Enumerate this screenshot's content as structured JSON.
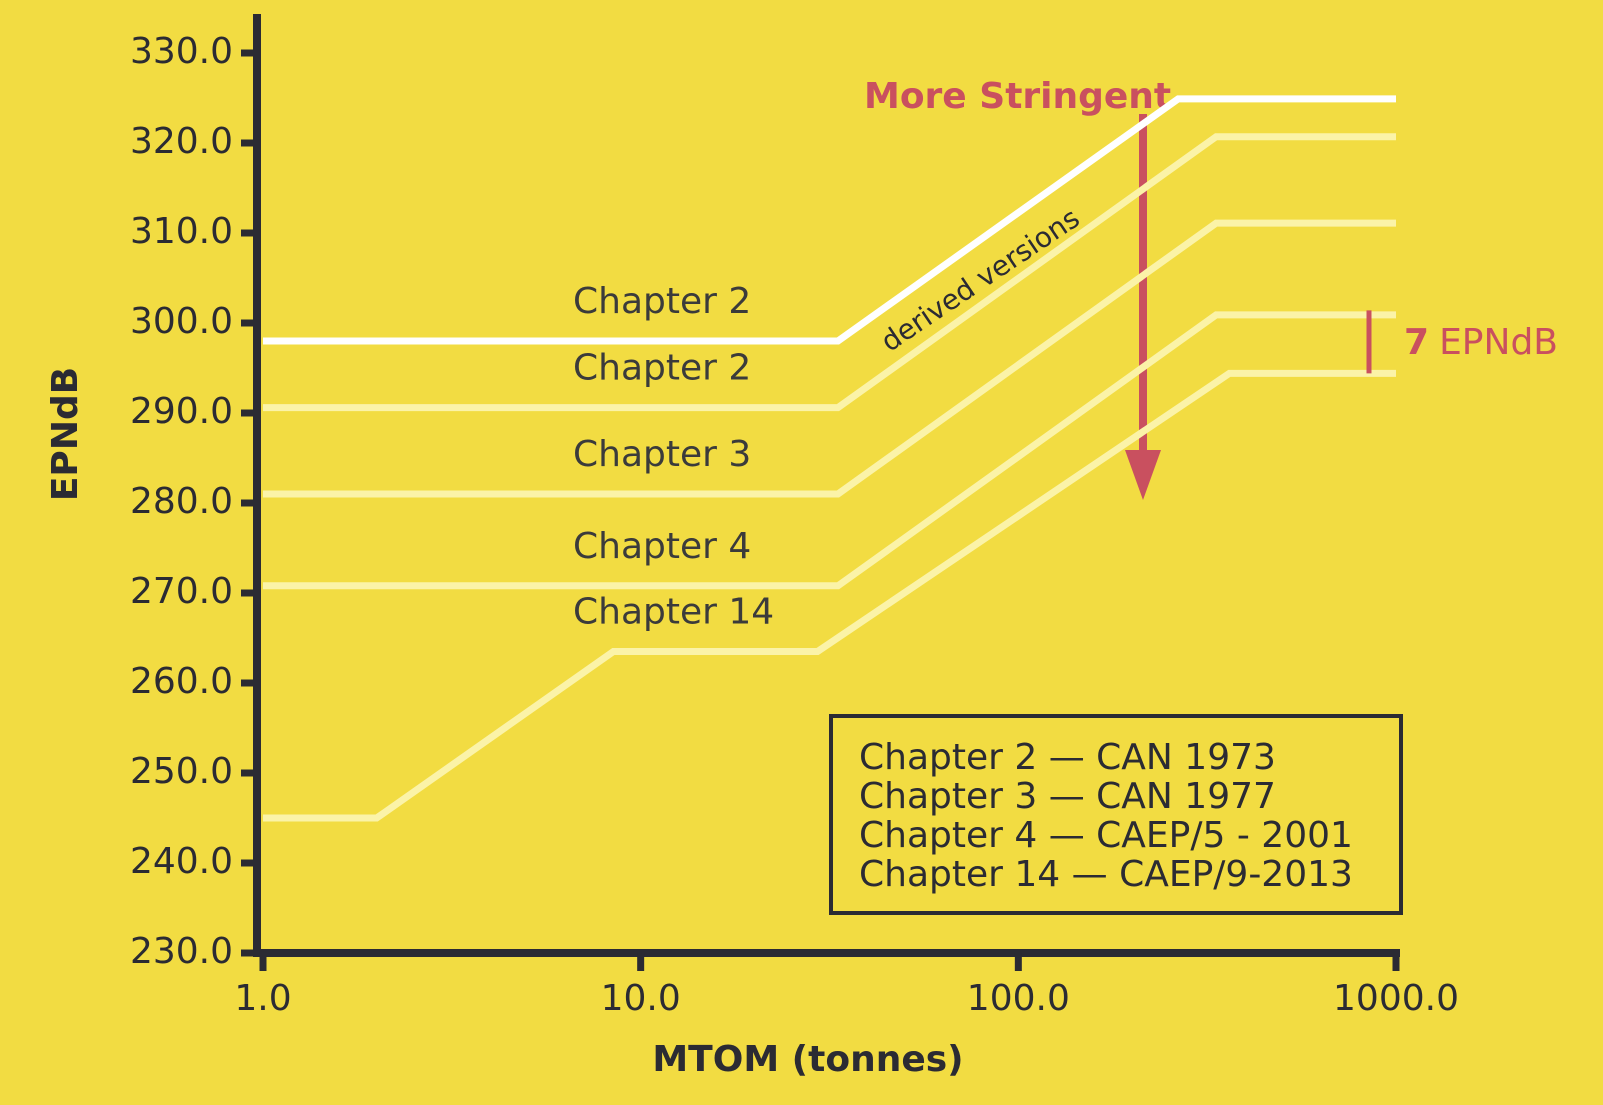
{
  "chart_data": {
    "type": "line",
    "x_label": "MTOM (tonnes)",
    "y_label": "EPNdB",
    "xscale": "log",
    "xlim": [
      1,
      1000
    ],
    "xticks": [
      {
        "value": 1,
        "label": "1.0"
      },
      {
        "value": 10,
        "label": "10.0"
      },
      {
        "value": 100,
        "label": "100.0"
      },
      {
        "value": 1000,
        "label": "1000.0"
      }
    ],
    "ylim": [
      230,
      330
    ],
    "yticks": [
      {
        "value": 230,
        "label": "230.0"
      },
      {
        "value": 240,
        "label": "240.0"
      },
      {
        "value": 250,
        "label": "250.0"
      },
      {
        "value": 260,
        "label": "260.0"
      },
      {
        "value": 270,
        "label": "270.0"
      },
      {
        "value": 280,
        "label": "280.0"
      },
      {
        "value": 290,
        "label": "290.0"
      },
      {
        "value": 300,
        "label": "300.0"
      },
      {
        "value": 310,
        "label": "310.0"
      },
      {
        "value": 320,
        "label": "320.0"
      },
      {
        "value": 330,
        "label": "330.0"
      }
    ],
    "series": [
      {
        "name": "Chapter 2",
        "color": "#ffffff",
        "x": [
          1,
          33.3,
          265,
          1000
        ],
        "values": [
          298,
          298,
          324.9,
          324.9
        ]
      },
      {
        "name": "Chapter 2",
        "color": "#fbf3a8",
        "x": [
          1,
          33.3,
          334,
          1000
        ],
        "values": [
          290.6,
          290.6,
          320.7,
          320.7
        ]
      },
      {
        "name": "Chapter 3",
        "color": "#fbf3a8",
        "x": [
          1,
          33.3,
          334,
          1000
        ],
        "values": [
          281,
          281,
          311.1,
          311.1
        ]
      },
      {
        "name": "Chapter 4",
        "color": "#fbf3a8",
        "x": [
          1,
          33.3,
          334,
          1000
        ],
        "values": [
          270.8,
          270.8,
          300.9,
          300.9
        ]
      },
      {
        "name": "Chapter 14",
        "color": "#fbf3a8",
        "x": [
          1,
          2,
          8.47,
          29.4,
          362,
          1000
        ],
        "values": [
          245,
          245,
          263.5,
          263.5,
          294.4,
          294.4
        ]
      }
    ],
    "annotations": {
      "stringent": "More Stringent",
      "derived": "derived versions"
    },
    "difference": {
      "value": 7,
      "unit": "EPNdB",
      "color": "#c9505f"
    },
    "notes": [
      "Chapter 2 — CAN 1973",
      "Chapter 3 — CAN 1977",
      "Chapter 4 — CAEP/5 - 2001",
      "Chapter 14 — CAEP/9-2013"
    ]
  }
}
